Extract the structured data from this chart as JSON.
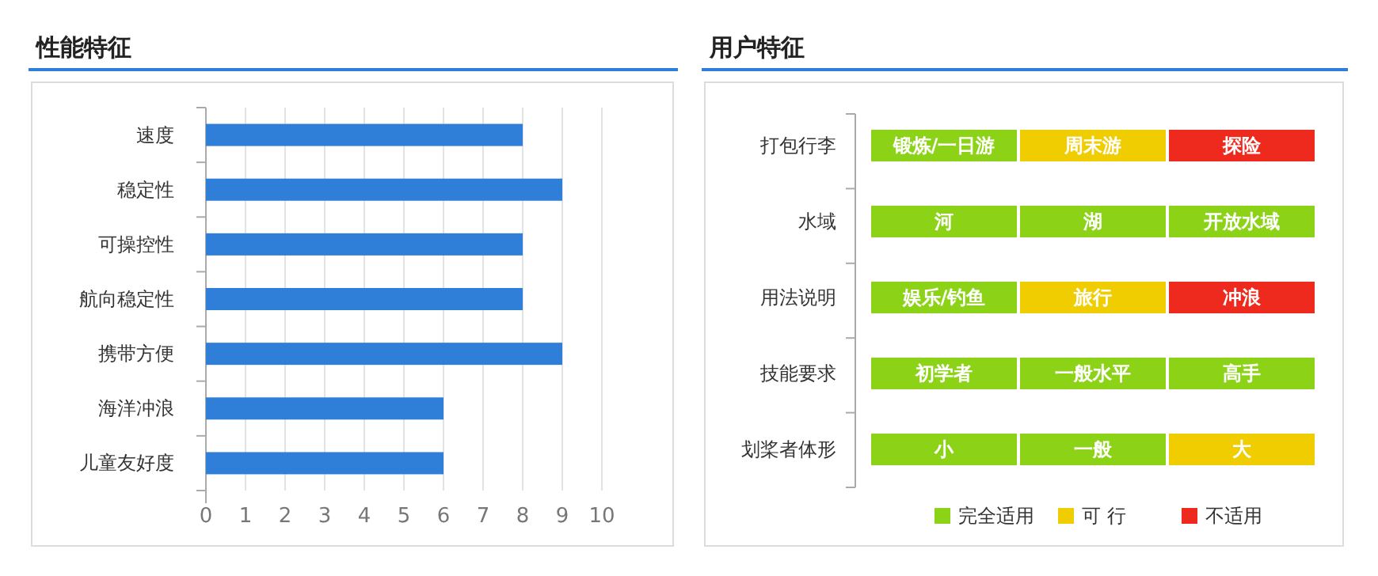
{
  "chart_data": [
    {
      "type": "bar",
      "title": "性能特征",
      "orientation": "horizontal",
      "categories": [
        "速度",
        "稳定性",
        "可操控性",
        "航向稳定性",
        "携带方便",
        "海洋冲浪",
        "儿童友好度"
      ],
      "values": [
        8,
        9,
        8,
        8,
        9,
        6,
        6
      ],
      "color": "#2f7ed8",
      "xlim": [
        0,
        10
      ],
      "xticks": [
        0,
        1,
        2,
        3,
        4,
        5,
        6,
        7,
        8,
        9,
        10
      ],
      "grid": "x"
    },
    {
      "type": "other",
      "title": "用户特征",
      "y_categories": [
        "打包行李",
        "水域",
        "用法说明",
        "技能要求",
        "划桨者体形"
      ],
      "colors": [
        [
          "#8cd317",
          "#f0cd00",
          "#ee2a1e"
        ],
        [
          "#8cd317",
          "#8cd317",
          "#8cd317"
        ],
        [
          "#8cd317",
          "#f0cd00",
          "#ee2a1e"
        ],
        [
          "#8cd317",
          "#8cd317",
          "#8cd317"
        ],
        [
          "#8cd317",
          "#8cd317",
          "#f0cd00"
        ]
      ],
      "cell_labels": [
        [
          "锻炼/一日游",
          "周末游",
          "探险"
        ],
        [
          "河",
          "湖",
          "开放水域"
        ],
        [
          "娱乐/钓鱼",
          "旅行",
          "冲浪"
        ],
        [
          "初学者",
          "一般水平",
          "高手"
        ],
        [
          "小",
          "一般",
          "大"
        ]
      ],
      "series": [
        {
          "name": "完全适用",
          "color": "#8cd317"
        },
        {
          "name": "可 行",
          "color": "#f0cd00"
        },
        {
          "name": "不适用",
          "color": "#ee2a1e"
        }
      ],
      "legend": "bottom"
    }
  ]
}
